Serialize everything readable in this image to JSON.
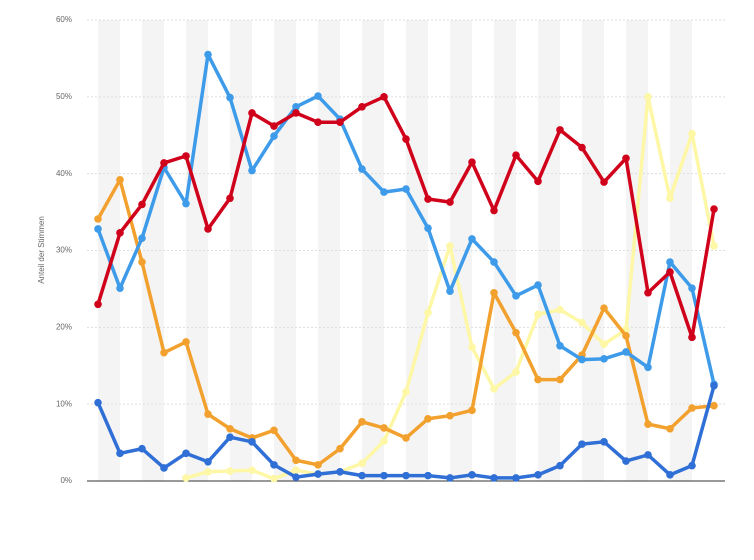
{
  "chart_data": {
    "type": "line",
    "y_label": "Anteil der Stimmen",
    "categories": [
      null,
      null,
      null,
      null,
      null,
      null,
      null,
      null,
      null,
      null,
      null,
      null,
      null,
      null,
      null,
      null,
      null,
      null,
      null,
      null,
      null,
      null,
      null,
      null,
      null,
      null,
      null,
      null,
      null
    ],
    "ylim": [
      0,
      60
    ],
    "yticks": [
      {
        "value": 0,
        "label": "0%"
      },
      {
        "value": 10,
        "label": "10%"
      },
      {
        "value": 20,
        "label": "20%"
      },
      {
        "value": 30,
        "label": "30%"
      },
      {
        "value": 40,
        "label": "40%"
      },
      {
        "value": 50,
        "label": "50%"
      },
      {
        "value": 60,
        "label": "60%"
      }
    ],
    "grid": true,
    "series": [
      {
        "color": "#fdf7a6",
        "values": [
          null,
          null,
          null,
          null,
          0.4,
          1.2,
          1.3,
          1.4,
          0.3,
          1.4,
          0.9,
          1.2,
          2.3,
          5.2,
          11.6,
          21.9,
          30.6,
          17.4,
          12,
          14.2,
          21.7,
          22.3,
          20.6,
          17.8,
          19.7,
          50,
          36.8,
          45.2,
          30.6
        ]
      },
      {
        "color": "#f2a12e",
        "values": [
          34.1,
          39.2,
          28.5,
          16.7,
          18.1,
          8.7,
          6.8,
          5.6,
          6.6,
          2.7,
          2.1,
          4.2,
          7.7,
          6.9,
          5.6,
          8.1,
          8.5,
          9.2,
          24.5,
          19.3,
          13.2,
          13.2,
          16.4,
          22.5,
          18.9,
          7.4,
          6.8,
          9.5,
          9.8
        ]
      },
      {
        "color": "#3d9be9",
        "values": [
          32.8,
          25.1,
          31.6,
          40.8,
          36.1,
          55.5,
          49.9,
          40.4,
          44.9,
          48.7,
          50.1,
          47.1,
          40.6,
          37.6,
          38,
          32.9,
          24.7,
          31.5,
          28.5,
          24.1,
          25.5,
          17.6,
          15.8,
          15.9,
          16.8,
          14.8,
          28.5,
          25.1,
          12.6
        ]
      },
      {
        "color": "#2f6fd6",
        "values": [
          10.2,
          3.6,
          4.2,
          1.7,
          3.6,
          2.5,
          5.7,
          5.1,
          2.1,
          0.5,
          0.9,
          1.2,
          0.7,
          0.7,
          0.7,
          0.7,
          0.4,
          0.8,
          0.4,
          0.4,
          0.8,
          2,
          4.8,
          5.1,
          2.6,
          3.4,
          0.8,
          2,
          12.4
        ]
      },
      {
        "color": "#d0021b",
        "values": [
          23,
          32.3,
          36,
          41.4,
          42.3,
          32.8,
          36.8,
          47.9,
          46.2,
          47.9,
          46.7,
          46.7,
          48.7,
          50,
          44.5,
          36.7,
          36.3,
          41.5,
          35.2,
          42.4,
          39,
          45.7,
          43.4,
          38.9,
          42,
          24.5,
          27.2,
          18.7,
          35.4
        ]
      }
    ]
  }
}
